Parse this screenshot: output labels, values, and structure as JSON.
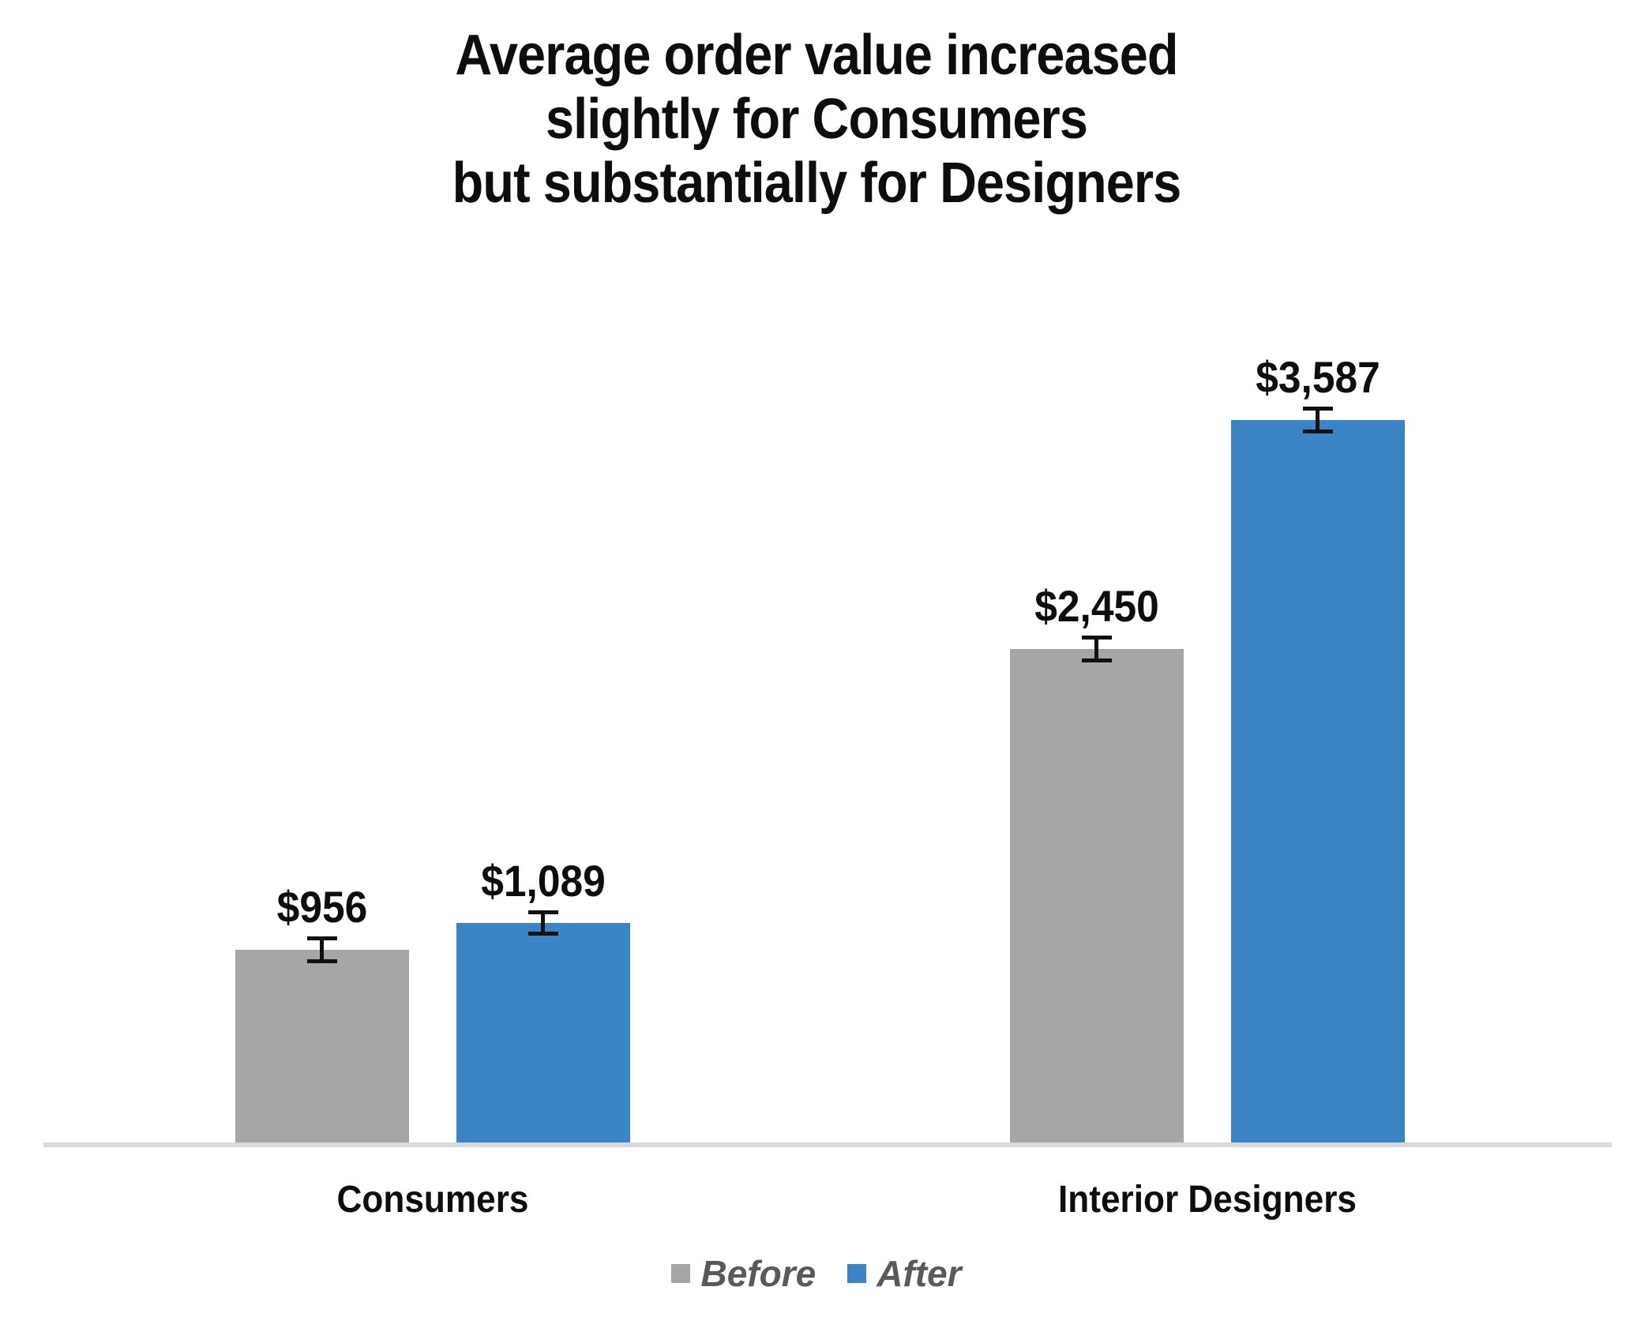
{
  "chart_data": {
    "type": "bar",
    "title": "Average order value increased slightly for Consumers but substantially for Designers",
    "title_lines": [
      "Average order value increased",
      "slightly for Consumers",
      "but substantially for Designers"
    ],
    "categories": [
      "Consumers",
      "Interior Designers"
    ],
    "series": [
      {
        "name": "Before",
        "color": "#A6A6A6",
        "values": [
          956,
          2450
        ],
        "labels": [
          "$956",
          "$2,450"
        ],
        "errors": [
          68,
          65
        ]
      },
      {
        "name": "After",
        "color": "#3B84C6",
        "values": [
          1089,
          3587
        ],
        "labels": [
          "$1,089",
          "$3,587"
        ],
        "errors": [
          62,
          68
        ]
      }
    ],
    "xlabel": "",
    "ylabel": "",
    "ylim": [
      0,
      4000
    ],
    "grid": false,
    "y_axis_visible": false,
    "error_bars": true,
    "legend_position": "bottom",
    "axis_line_color": "#D9D9D9"
  },
  "colors": {
    "before": "#A6A6A6",
    "after": "#3B84C6",
    "axis_line": "#D9D9D9",
    "title_text": "#0D0D0D",
    "legend_text": "#595959",
    "error_bar": "#111111"
  }
}
